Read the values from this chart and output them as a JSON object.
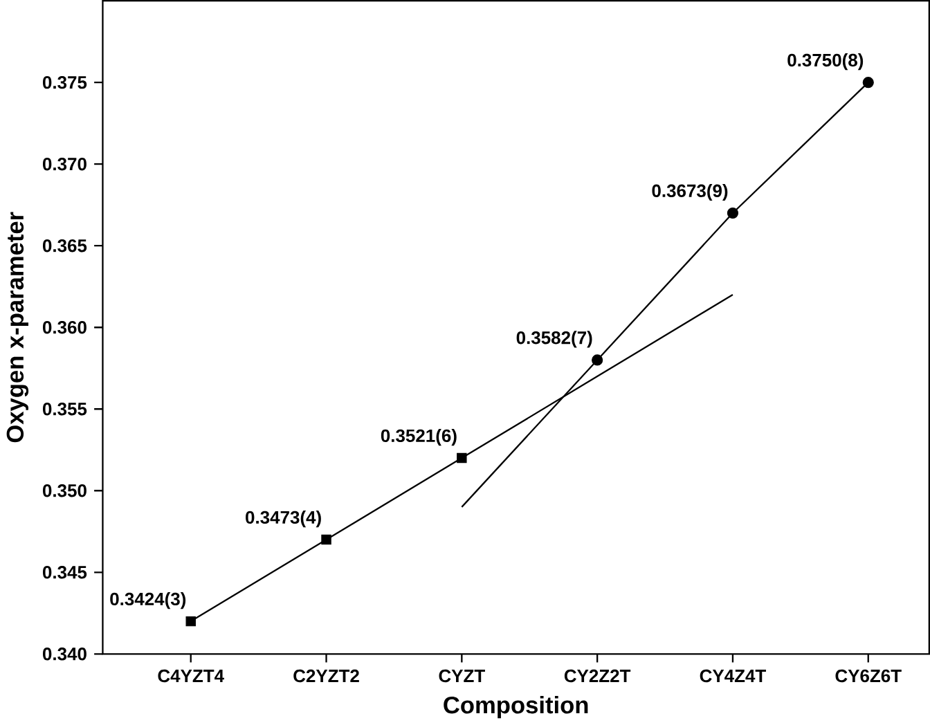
{
  "chart_data": {
    "type": "scatter",
    "xlabel": "Composition",
    "ylabel": "Oxygen x-parameter",
    "categories": [
      "C4YZT4",
      "C2YZT2",
      "CYZT",
      "CY2Z2T",
      "CY4Z4T",
      "CY6Z6T"
    ],
    "ylim": [
      0.34,
      0.38
    ],
    "yticks": [
      {
        "value": 0.34,
        "label": "0.340"
      },
      {
        "value": 0.345,
        "label": "0.345"
      },
      {
        "value": 0.35,
        "label": "0.350"
      },
      {
        "value": 0.355,
        "label": "0.355"
      },
      {
        "value": 0.36,
        "label": "0.360"
      },
      {
        "value": 0.365,
        "label": "0.365"
      },
      {
        "value": 0.37,
        "label": "0.370"
      },
      {
        "value": 0.375,
        "label": "0.375"
      }
    ],
    "series": [
      {
        "marker": "square",
        "color": "#000000",
        "values": [
          0.342,
          0.347,
          0.352,
          null,
          null,
          null
        ],
        "value_labels": [
          "0.3424(3)",
          "0.3473(4)",
          "0.3521(6)",
          null,
          null,
          null
        ]
      },
      {
        "marker": "circle",
        "color": "#000000",
        "values": [
          null,
          null,
          null,
          0.358,
          0.367,
          0.375
        ],
        "value_labels": [
          null,
          null,
          null,
          "0.3582(7)",
          "0.3673(9)",
          "0.3750(8)"
        ]
      },
      {
        "type": "line",
        "color": "#000000",
        "values": [
          0.342,
          0.347,
          0.352,
          0.357,
          0.362,
          null
        ]
      },
      {
        "type": "line",
        "color": "#000000",
        "values": [
          null,
          null,
          0.349,
          0.358,
          0.367,
          0.375
        ]
      }
    ]
  }
}
